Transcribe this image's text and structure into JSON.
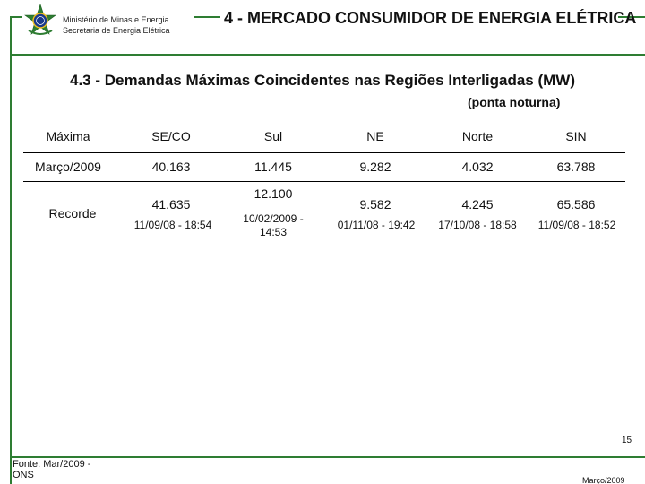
{
  "header": {
    "ministry_line1": "Ministério de Minas e Energia",
    "ministry_line2": "Secretaria de Energia Elétrica",
    "title": "4 - MERCADO CONSUMIDOR DE ENERGIA ELÉTRICA",
    "seal_icon": "brazil-coat-of-arms-icon",
    "accent_color": "#2e7d32"
  },
  "section": {
    "title": "4.3 - Demandas Máximas Coincidentes nas Regiões Interligadas (MW)",
    "subtitle": "(ponta noturna)"
  },
  "table": {
    "headers": [
      "Máxima",
      "SE/CO",
      "Sul",
      "NE",
      "Norte",
      "SIN"
    ],
    "row_marco": {
      "label": "Março/2009",
      "values": [
        "40.163",
        "11.445",
        "9.282",
        "4.032",
        "63.788"
      ]
    },
    "row_recorde": {
      "label": "Recorde",
      "values": [
        "41.635",
        "12.100",
        "9.582",
        "4.245",
        "65.586"
      ],
      "dates": [
        "11/09/08 - 18:54",
        "10/02/2009 - 14:53",
        "01/11/08 - 19:42",
        "17/10/08 - 18:58",
        "11/09/08 - 18:52"
      ]
    }
  },
  "footer": {
    "source": "Fonte: Mar/2009 - ONS",
    "page_number": "15",
    "date": "Março/2009"
  }
}
